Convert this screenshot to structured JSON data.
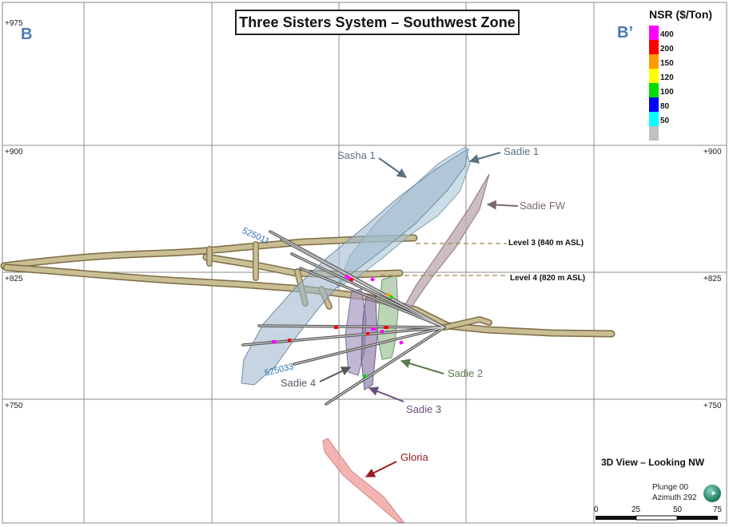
{
  "title": "Three Sisters System – Southwest Zone",
  "section": {
    "left": "B",
    "right": "B’"
  },
  "elevations": {
    "top_left": "+975",
    "left_900": "+900",
    "right_900": "+900",
    "left_825": "+825",
    "right_825": "+825",
    "left_750": "+750",
    "right_750": "+750"
  },
  "zones": {
    "sasha1": "Sasha 1",
    "sadie1": "Sadie 1",
    "sadie_fw": "Sadie FW",
    "sadie2": "Sadie 2",
    "sadie3": "Sadie 3",
    "sadie4": "Sadie 4",
    "gloria": "Gloria"
  },
  "levels": {
    "level3": "Level 3 (840 m ASL)",
    "level4": "Level 4 (820 m ASL)"
  },
  "drillholes": {
    "hole_a": "525011",
    "hole_b": "525033"
  },
  "legend": {
    "title": "NSR ($/Ton)",
    "entries": [
      {
        "value": "400",
        "color": "#ff00ff"
      },
      {
        "value": "200",
        "color": "#ff0000"
      },
      {
        "value": "150",
        "color": "#ff9900"
      },
      {
        "value": "120",
        "color": "#ffff00"
      },
      {
        "value": "100",
        "color": "#00dd00"
      },
      {
        "value": "80",
        "color": "#0000ff"
      },
      {
        "value": "50",
        "color": "#00ffff"
      },
      {
        "value": "",
        "color": "#c0c0c0"
      }
    ]
  },
  "view": {
    "title": "3D View – Looking NW",
    "plunge": "Plunge 00",
    "azimuth": "Azimuth 292"
  },
  "scale_bar": {
    "ticks": [
      "0",
      "25",
      "50",
      "75"
    ]
  },
  "colors": {
    "sasha_zone": "#9cb7cc",
    "sadie1_zone": "#a9c7d6",
    "sadie_fw_zone": "#bca6ad",
    "sadie2_zone": "#9fc29a",
    "sadie4_zone": "#a99ac0",
    "gloria_zone": "#f2a6a6",
    "workings": "#a8996a",
    "label_blue_grey": "#5a7180",
    "label_brown": "#7a6a6a",
    "label_green": "#5b7b4f",
    "label_purple": "#6a4f7a",
    "label_red": "#9a1a1a"
  }
}
